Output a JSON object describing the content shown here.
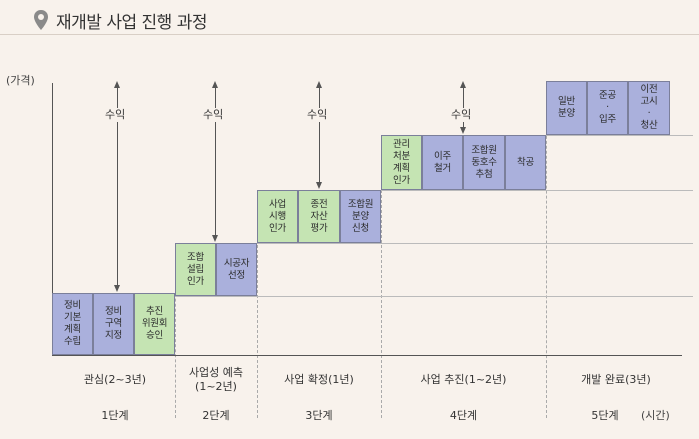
{
  "title": "재개발 사업 진행 과정",
  "y_axis_label": "(가격)",
  "x_axis_label": "(시간)",
  "colors": {
    "blue": "#aab0dc",
    "green": "#c5e4b3",
    "background": "#f8f2ec"
  },
  "profit_label": "수익",
  "stages": [
    {
      "name": "1단계",
      "period": "관심(2~3년)",
      "boxes": [
        "정비\n기본\n계획\n수립",
        "정비\n구역\n지정",
        "추진\n위원회\n승인"
      ]
    },
    {
      "name": "2단계",
      "period": "사업성 예측\n(1~2년)",
      "boxes": [
        "조합\n설립\n인가",
        "시공자\n선정"
      ]
    },
    {
      "name": "3단계",
      "period": "사업 확정(1년)",
      "boxes": [
        "사업\n시행\n인가",
        "종전\n자산\n평가",
        "조합원\n분양\n신청"
      ]
    },
    {
      "name": "4단계",
      "period": "사업 추진(1~2년)",
      "boxes": [
        "관리\n처분\n계획\n인가",
        "이주\n철거",
        "조합원\n동호수\n추첨",
        "착공"
      ]
    },
    {
      "name": "5단계",
      "period": "개발 완료(3년)",
      "boxes": [
        "일반\n분양",
        "준공\n·\n입주",
        "이전\n고시\n·\n청산"
      ]
    }
  ]
}
